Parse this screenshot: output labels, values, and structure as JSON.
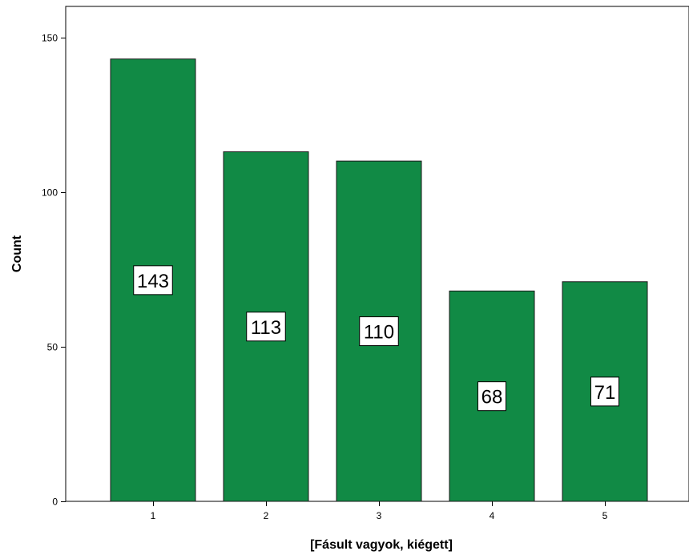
{
  "chart_data": {
    "type": "bar",
    "categories": [
      "1",
      "2",
      "3",
      "4",
      "5"
    ],
    "values": [
      143,
      113,
      110,
      68,
      71
    ],
    "data_labels": [
      "143",
      "113",
      "110",
      "68",
      "71"
    ],
    "title": "",
    "xlabel": "[Fásult vagyok, kiégett]",
    "ylabel": "Count",
    "ylim": [
      0,
      160
    ],
    "yticks": [
      "0",
      "50",
      "100",
      "150"
    ],
    "ytick_values": [
      0,
      50,
      100,
      150
    ],
    "grid": false,
    "legend": "none",
    "colors": {
      "bar_fill": "#118a45",
      "bar_stroke": "#1a1a1a",
      "axis": "#000000",
      "label_box_fill": "#ffffff"
    }
  }
}
